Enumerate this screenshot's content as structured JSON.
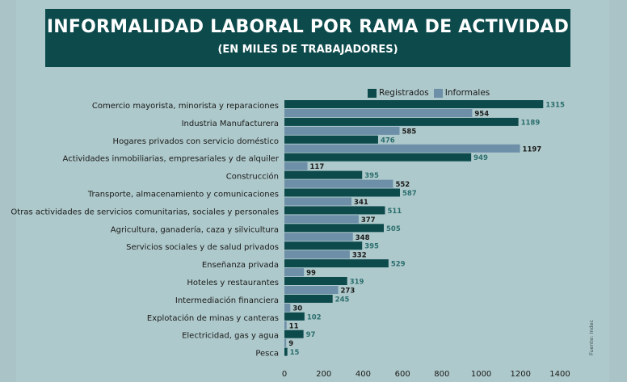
{
  "title": "INFORMALIDAD LABORAL POR RAMA DE ACTIVIDAD",
  "subtitle": "(EN MILES DE TRABAJADORES)",
  "source": "Fuente: Indec",
  "colors": {
    "registrados": "#0d4a4c",
    "informales": "#6e8fa8",
    "label_registrados": "#2b6e6e",
    "label_informales": "#1a1a1a",
    "title_bg": "#0d4a4c"
  },
  "legend": {
    "registrados": "Registrados",
    "informales": "Informales"
  },
  "chart_data": {
    "type": "bar",
    "orientation": "horizontal",
    "categories": [
      "Comercio mayorista, minorista y reparaciones",
      "Industria Manufacturera",
      "Hogares privados con servicio doméstico",
      "Actividades inmobiliarias, empresariales y de alquiler",
      "Construcción",
      "Transporte, almacenamiento y comunicaciones",
      "Otras actividades de servicios comunitarias, sociales y personales",
      "Agricultura, ganadería, caza y silvicultura",
      "Servicios sociales y de salud privados",
      "Enseñanza privada",
      "Hoteles y restaurantes",
      "Intermediación financiera",
      "Explotación de minas y canteras",
      "Electricidad, gas y agua",
      "Pesca"
    ],
    "series": [
      {
        "name": "Registrados",
        "values": [
          1315,
          1189,
          476,
          949,
          395,
          587,
          511,
          505,
          395,
          529,
          319,
          245,
          102,
          97,
          15
        ]
      },
      {
        "name": "Informales",
        "values": [
          954,
          585,
          1197,
          117,
          552,
          341,
          377,
          348,
          332,
          99,
          273,
          30,
          11,
          9,
          null
        ]
      }
    ],
    "xticks": [
      0,
      200,
      400,
      600,
      800,
      1000,
      1200,
      1400
    ],
    "xlim": [
      0,
      1400
    ],
    "legend_position": "top-right",
    "grid": false
  }
}
